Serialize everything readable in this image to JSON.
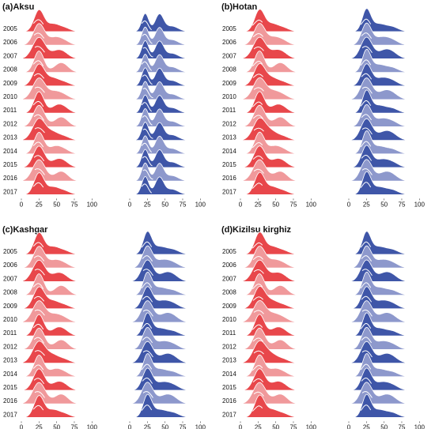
{
  "chart_data": [
    {
      "type": "ridgeline",
      "title": "(a)Aksu",
      "years": [
        "2005",
        "2006",
        "2007",
        "2008",
        "2009",
        "2010",
        "2011",
        "2012",
        "2013",
        "2014",
        "2015",
        "2016",
        "2017"
      ],
      "xticks": [
        "0",
        "25",
        "50",
        "75",
        "100"
      ],
      "xlim": [
        0,
        100
      ],
      "series_colors": [
        "#e8474b",
        "#f0999b",
        "#3f56a8",
        "#8d98cc"
      ]
    },
    {
      "type": "ridgeline",
      "title": "(b)Hotan",
      "years": [
        "2005",
        "2006",
        "2007",
        "2008",
        "2009",
        "2010",
        "2011",
        "2012",
        "2013",
        "2014",
        "2015",
        "2016",
        "2017"
      ],
      "xticks": [
        "0",
        "25",
        "50",
        "75",
        "100"
      ],
      "xlim": [
        0,
        100
      ],
      "series_colors": [
        "#e8474b",
        "#f0999b",
        "#3f56a8",
        "#8d98cc"
      ]
    },
    {
      "type": "ridgeline",
      "title": "(c)Kashgar",
      "years": [
        "2005",
        "2006",
        "2007",
        "2008",
        "2009",
        "2010",
        "2011",
        "2012",
        "2013",
        "2014",
        "2015",
        "2016",
        "2017"
      ],
      "xticks": [
        "0",
        "25",
        "50",
        "75",
        "100"
      ],
      "xlim": [
        0,
        100
      ],
      "series_colors": [
        "#e8474b",
        "#f0999b",
        "#3f56a8",
        "#8d98cc"
      ]
    },
    {
      "type": "ridgeline",
      "title": "(d)Kizilsu kirghiz",
      "years": [
        "2005",
        "2006",
        "2007",
        "2008",
        "2009",
        "2010",
        "2011",
        "2012",
        "2013",
        "2014",
        "2015",
        "2016",
        "2017"
      ],
      "xticks": [
        "0",
        "25",
        "50",
        "75",
        "100"
      ],
      "xlim": [
        0,
        100
      ],
      "series_colors": [
        "#e8474b",
        "#f0999b",
        "#3f56a8",
        "#8d98cc"
      ]
    }
  ]
}
